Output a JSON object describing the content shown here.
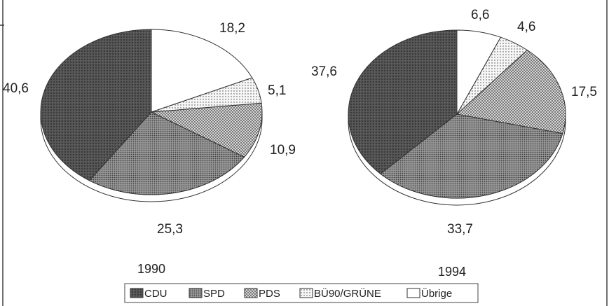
{
  "chart_data": [
    {
      "type": "pie",
      "title": "1990",
      "slices": [
        {
          "name": "CDU",
          "value": 40.6,
          "label": "40,6"
        },
        {
          "name": "SPD",
          "value": 25.3,
          "label": "25,3"
        },
        {
          "name": "PDS",
          "value": 10.9,
          "label": "10,9"
        },
        {
          "name": "BÜ90/GRÜNE",
          "value": 5.1,
          "label": "5,1"
        },
        {
          "name": "Übrige",
          "value": 18.2,
          "label": "18,2"
        }
      ]
    },
    {
      "type": "pie",
      "title": "1994",
      "slices": [
        {
          "name": "CDU",
          "value": 37.6,
          "label": "37,6"
        },
        {
          "name": "SPD",
          "value": 33.7,
          "label": "33,7"
        },
        {
          "name": "PDS",
          "value": 17.5,
          "label": "17,5"
        },
        {
          "name": "BÜ90/GRÜNE",
          "value": 4.6,
          "label": "4,6"
        },
        {
          "name": "Übrige",
          "value": 6.6,
          "label": "6,6"
        }
      ]
    }
  ],
  "legend": {
    "placement": "bottom-center",
    "items": [
      {
        "name": "CDU",
        "pattern": "cdu-dark"
      },
      {
        "name": "SPD",
        "pattern": "spd-medium"
      },
      {
        "name": "PDS",
        "pattern": "pds-light"
      },
      {
        "name": "BÜ90/GRÜNE",
        "pattern": "gruene-dotted"
      },
      {
        "name": "Übrige",
        "pattern": "white"
      }
    ]
  },
  "colors": {
    "CDU": "#4a4a4a",
    "SPD": "#7a7a7a",
    "PDS": "#a8a8a8",
    "BÜ90/GRÜNE": "#d2d2d2",
    "Übrige": "#ffffff"
  }
}
